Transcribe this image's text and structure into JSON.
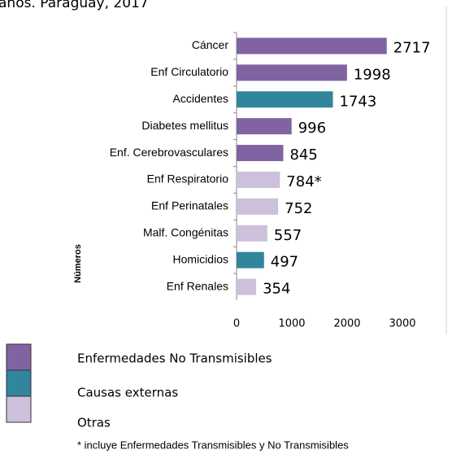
{
  "chart_data": {
    "type": "bar",
    "orientation": "horizontal",
    "title": "años. Paraguay, 2017",
    "y_axis_label": "Números",
    "categories": [
      "Cáncer",
      "Enf Circulatorio",
      "Accidentes",
      "Diabetes mellitus",
      "Enf. Cerebrovasculares",
      "Enf Respiratorio",
      "Enf Perinatales",
      "Malf. Congénitas",
      "Homicidios",
      "Enf Renales"
    ],
    "values": [
      2717,
      1998,
      1743,
      996,
      845,
      784,
      752,
      557,
      497,
      354
    ],
    "value_labels": [
      "2717",
      "1998",
      "1743",
      "996",
      "845",
      "784*",
      "752",
      "557",
      "497",
      "354"
    ],
    "colors": [
      "#8064a2",
      "#8064a2",
      "#31859c",
      "#8064a2",
      "#8064a2",
      "#ccc0da",
      "#ccc0da",
      "#ccc0da",
      "#31859c",
      "#ccc0da"
    ],
    "xlim": [
      0,
      3000
    ],
    "xticks": [
      0,
      1000,
      2000,
      3000
    ],
    "grid": false,
    "legend": [
      {
        "name": "Enfermedades No Transmisibles",
        "color": "#8064a2"
      },
      {
        "name": "Causas externas",
        "color": "#31859c"
      },
      {
        "name": "Otras",
        "color": "#ccc0da"
      }
    ],
    "note": "* incluye Enfermedades Transmisibles y No Transmisibles"
  }
}
